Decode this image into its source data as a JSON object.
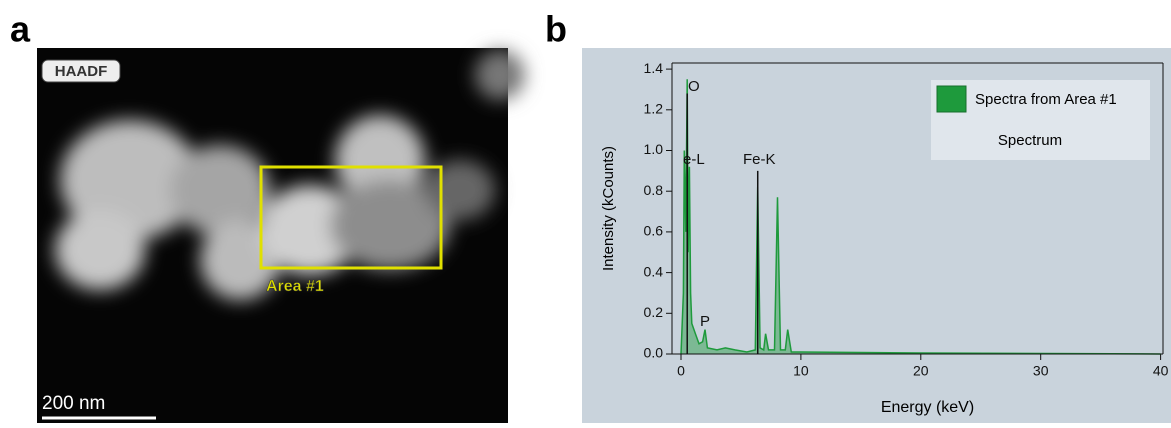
{
  "panel_a": {
    "label": "a",
    "badge": "HAADF",
    "area_label": "Area #1",
    "scale_bar": "200 nm"
  },
  "panel_b": {
    "label": "b"
  },
  "chart_data": {
    "type": "area",
    "x_label": "Energy (keV)",
    "y_label": "Intensity (kCounts)",
    "xlim": [
      -0.75,
      40.2
    ],
    "ylim": [
      0,
      1.43
    ],
    "xticks": [
      0,
      10,
      20,
      30,
      40
    ],
    "yticks": [
      {
        "value": 0,
        "label": "0.0"
      },
      0.2,
      0.4,
      0.6,
      0.8,
      {
        "value": 1,
        "label": "1.0"
      },
      1.2,
      1.4
    ],
    "legend_title": "Spectrum",
    "annotations": [
      "O",
      "e-L",
      "Fe-K",
      "P"
    ],
    "series": [
      {
        "name": "Spectra from Area #1",
        "color": "#1e9a3c",
        "x": [
          0,
          0.2,
          0.28,
          0.4,
          0.52,
          0.6,
          0.7,
          0.8,
          0.9,
          1.2,
          1.5,
          1.8,
          2.0,
          2.2,
          3.0,
          3.7,
          4.5,
          5.5,
          6.2,
          6.4,
          6.6,
          6.9,
          7.06,
          7.3,
          7.8,
          8.05,
          8.3,
          8.7,
          8.9,
          9.2,
          10,
          20,
          40
        ],
        "values": [
          0,
          0.3,
          1.0,
          0.6,
          1.35,
          0.5,
          0.92,
          0.3,
          0.15,
          0.1,
          0.05,
          0.06,
          0.12,
          0.03,
          0.02,
          0.03,
          0.02,
          0.01,
          0.02,
          0.82,
          0.03,
          0.02,
          0.1,
          0.02,
          0.02,
          0.77,
          0.02,
          0.02,
          0.12,
          0.01,
          0.01,
          0.005,
          0
        ]
      }
    ]
  }
}
